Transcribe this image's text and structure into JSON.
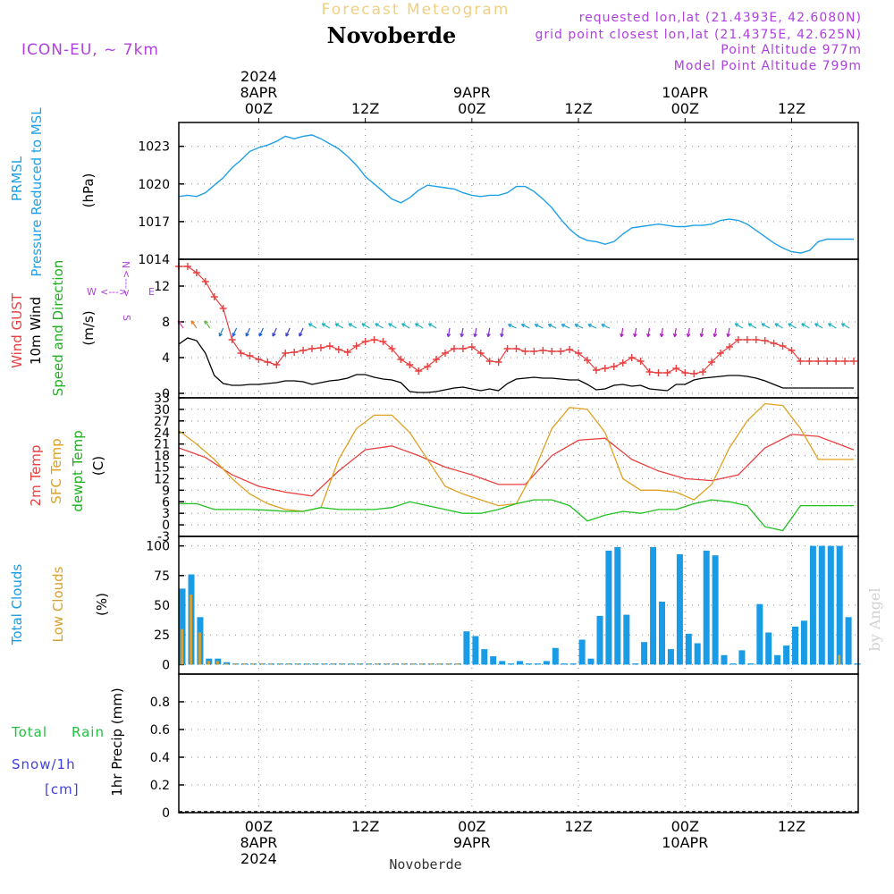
{
  "header": {
    "forecast_title": "Forecast Meteogram",
    "location": "Novoberde",
    "model": "ICON-EU, ~ 7km",
    "requested": "requested lon,lat (21.4393E, 42.6080N)",
    "gridpoint": "grid point closest lon,lat (21.4375E, 42.625N)",
    "point_altitude": "Point Altitude 977m",
    "model_altitude": "Model Point Altitude 799m",
    "watermark": "by Angel",
    "footer_location": "Novoberde"
  },
  "colors": {
    "pressure": "#1ea0e6",
    "gust": "#e84040",
    "wind": "#000000",
    "temp2m": "#e84040",
    "sfc": "#e0a020",
    "dewpt": "#20c020",
    "total_clouds": "#1a9be6",
    "low_clouds": "#d8a030",
    "purple": "#b040e0",
    "rain": "#20c040",
    "snow": "#4040e0"
  },
  "time_axis": {
    "top": [
      {
        "hours": 9,
        "lines": [
          "2024",
          "8APR",
          "00Z"
        ]
      },
      {
        "hours": 21,
        "lines": [
          "12Z"
        ]
      },
      {
        "hours": 33,
        "lines": [
          "9APR",
          "00Z"
        ]
      },
      {
        "hours": 45,
        "lines": [
          "12Z"
        ]
      },
      {
        "hours": 57,
        "lines": [
          "10APR",
          "00Z"
        ]
      },
      {
        "hours": 69,
        "lines": [
          "12Z"
        ]
      }
    ],
    "bottom": [
      {
        "hours": 9,
        "lines": [
          "00Z",
          "8APR",
          "2024"
        ]
      },
      {
        "hours": 21,
        "lines": [
          "12Z"
        ]
      },
      {
        "hours": 33,
        "lines": [
          "00Z",
          "9APR"
        ]
      },
      {
        "hours": 45,
        "lines": [
          "12Z"
        ]
      },
      {
        "hours": 57,
        "lines": [
          "00Z",
          "10APR"
        ]
      },
      {
        "hours": 69,
        "lines": [
          "12Z"
        ]
      }
    ],
    "xlim": [
      0,
      76.5
    ],
    "note_x": "hours since 15Z 7APR 2024"
  },
  "panel_labels": {
    "pressure": [
      "PRMSL",
      "Pressure Reduced to MSL"
    ],
    "pressure_unit": "(hPa)",
    "wind": [
      "Wind GUST",
      "10m Wind",
      "Speed and Direction"
    ],
    "wind_unit": "(m/s)",
    "wind_rose": {
      "n": "N",
      "s": "S",
      "w": "W",
      "e": "E",
      "arrow_ew": "<--->",
      "arrow_ns": "<--->"
    },
    "temp": [
      "2m Temp",
      "SFC Temp",
      "dewpt Temp"
    ],
    "temp_unit": "(C)",
    "clouds": [
      "Total Clouds",
      "Low Clouds"
    ],
    "clouds_unit": "(%)",
    "precip": [
      "Total",
      "Rain",
      "Snow/1h",
      "[cm]"
    ],
    "precip_unit": "1hr Precip (mm)"
  },
  "chart_data": [
    {
      "type": "line",
      "title": "PRMSL Pressure Reduced to MSL",
      "ylabel": "(hPa)",
      "ylim": [
        1014,
        1024.9
      ],
      "yticks": [
        1014,
        1017,
        1020,
        1023
      ],
      "grid": true,
      "series": [
        {
          "name": "PRMSL",
          "x": [
            0,
            1,
            2,
            3,
            4,
            5,
            6,
            7,
            8,
            9,
            10,
            11,
            12,
            13,
            14,
            15,
            16,
            17,
            18,
            19,
            20,
            21,
            22,
            23,
            24,
            25,
            26,
            27,
            28,
            29,
            30,
            31,
            32,
            33,
            34,
            35,
            36,
            37,
            38,
            39,
            40,
            41,
            42,
            43,
            44,
            45,
            46,
            47,
            48,
            49,
            50,
            51,
            52,
            53,
            54,
            55,
            56,
            57,
            58,
            59,
            60,
            61,
            62,
            63,
            64,
            65,
            66,
            67,
            68,
            69,
            70,
            71,
            72,
            73,
            74,
            75,
            76
          ],
          "values": [
            1019,
            1019.1,
            1019.0,
            1019.3,
            1019.9,
            1020.5,
            1021.3,
            1021.9,
            1022.6,
            1022.9,
            1023.1,
            1023.4,
            1023.8,
            1023.6,
            1023.8,
            1023.9,
            1023.6,
            1023.2,
            1022.8,
            1022.2,
            1021.5,
            1020.6,
            1020.0,
            1019.4,
            1018.8,
            1018.5,
            1018.9,
            1019.5,
            1019.9,
            1019.8,
            1019.7,
            1019.6,
            1019.3,
            1019.1,
            1019.0,
            1019.1,
            1019.1,
            1019.3,
            1019.8,
            1019.8,
            1019.4,
            1018.8,
            1018.1,
            1017.2,
            1016.4,
            1015.8,
            1015.5,
            1015.4,
            1015.2,
            1015.4,
            1016.0,
            1016.5,
            1016.6,
            1016.7,
            1016.8,
            1016.7,
            1016.6,
            1016.6,
            1016.7,
            1016.7,
            1016.8,
            1017.1,
            1017.2,
            1017.1,
            1016.8,
            1016.3,
            1015.8,
            1015.3,
            1014.9,
            1014.6,
            1014.5,
            1014.7,
            1015.4,
            1015.6,
            1015.6,
            1015.6,
            1015.6
          ]
        }
      ]
    },
    {
      "type": "line",
      "title": "Wind GUST / 10m Wind Speed and Direction",
      "ylabel": "(m/s)",
      "ylim": [
        -0.5,
        15
      ],
      "yticks": [
        0,
        4,
        8,
        12
      ],
      "grid": true,
      "series": [
        {
          "name": "Wind GUST",
          "marker": "+",
          "x": [
            0,
            1,
            2,
            3,
            4,
            5,
            6,
            7,
            8,
            9,
            10,
            11,
            12,
            13,
            14,
            15,
            16,
            17,
            18,
            19,
            20,
            21,
            22,
            23,
            24,
            25,
            26,
            27,
            28,
            29,
            30,
            31,
            32,
            33,
            34,
            35,
            36,
            37,
            38,
            39,
            40,
            41,
            42,
            43,
            44,
            45,
            46,
            47,
            48,
            49,
            50,
            51,
            52,
            53,
            54,
            55,
            56,
            57,
            58,
            59,
            60,
            61,
            62,
            63,
            64,
            65,
            66,
            67,
            68,
            69,
            70,
            71,
            72,
            73,
            74,
            75,
            76
          ],
          "values": [
            14.2,
            14.2,
            13.5,
            12.5,
            10.8,
            9.5,
            6,
            4.5,
            4.2,
            3.8,
            3.5,
            3.2,
            4.5,
            4.6,
            4.8,
            5,
            5.1,
            5.3,
            4.9,
            4.6,
            5.3,
            5.8,
            6,
            5.8,
            5,
            3.8,
            3.2,
            2.5,
            3,
            3.8,
            4.5,
            5,
            5,
            5.2,
            4.5,
            3.6,
            3.5,
            5.0,
            5.0,
            4.7,
            4.7,
            4.8,
            4.7,
            4.7,
            4.9,
            4.5,
            3.7,
            2.6,
            2.8,
            3.0,
            3.4,
            4.0,
            3.6,
            2.4,
            2.3,
            2.3,
            2.8,
            2.3,
            2.2,
            2.4,
            3.5,
            4.5,
            5.2,
            6,
            6,
            6,
            5.9,
            5.6,
            5.3,
            4.8,
            3.6,
            3.6,
            3.6,
            3.6,
            3.6,
            3.6,
            3.6
          ]
        },
        {
          "name": "10m Wind",
          "x": [
            0,
            1,
            2,
            3,
            4,
            5,
            6,
            7,
            8,
            9,
            10,
            11,
            12,
            13,
            14,
            15,
            16,
            17,
            18,
            19,
            20,
            21,
            22,
            23,
            24,
            25,
            26,
            27,
            28,
            29,
            30,
            31,
            32,
            33,
            34,
            35,
            36,
            37,
            38,
            39,
            40,
            41,
            42,
            43,
            44,
            45,
            46,
            47,
            48,
            49,
            50,
            51,
            52,
            53,
            54,
            55,
            56,
            57,
            58,
            59,
            60,
            61,
            62,
            63,
            64,
            65,
            66,
            67,
            68,
            69,
            70,
            71,
            72,
            73,
            74,
            75,
            76
          ],
          "values": [
            5.5,
            6.2,
            5.9,
            4.5,
            2.0,
            1.1,
            0.9,
            0.9,
            1.0,
            1.0,
            1.1,
            1.2,
            1.4,
            1.4,
            1.3,
            1.0,
            1.2,
            1.4,
            1.5,
            1.7,
            2.1,
            2.1,
            1.8,
            1.6,
            1.5,
            1.2,
            0.2,
            0.1,
            0.1,
            0.2,
            0.4,
            0.6,
            0.7,
            0.5,
            0.3,
            0.5,
            0.3,
            1.1,
            1.6,
            1.7,
            1.8,
            1.7,
            1.7,
            1.6,
            1.5,
            1.5,
            1.0,
            0.4,
            0.5,
            0.9,
            1.0,
            0.8,
            0.9,
            0.5,
            0.4,
            0.3,
            1.0,
            1.0,
            1.5,
            1.7,
            1.8,
            1.9,
            2.0,
            2.0,
            1.9,
            1.7,
            1.4,
            1.0,
            0.6,
            0.6,
            0.6,
            0.6,
            0.6,
            0.6,
            0.6,
            0.6,
            0.6
          ]
        }
      ]
    },
    {
      "type": "line",
      "title": "2m Temp / SFC Temp / dewpt Temp",
      "ylabel": "(C)",
      "ylim": [
        -3,
        33
      ],
      "yticks": [
        -3,
        0,
        3,
        6,
        9,
        12,
        15,
        18,
        21,
        24,
        27,
        30,
        33
      ],
      "grid": true,
      "series": [
        {
          "name": "2m Temp",
          "x": [
            0,
            3,
            6,
            9,
            12,
            15,
            18,
            21,
            24,
            27,
            30,
            33,
            36,
            39,
            42,
            45,
            48,
            51,
            54,
            57,
            60,
            63,
            66,
            69,
            72,
            76
          ],
          "values": [
            20,
            17.5,
            13,
            10,
            8.5,
            7.5,
            14,
            19.5,
            20.5,
            18,
            15,
            13,
            10.5,
            10.5,
            18,
            22,
            22.5,
            17,
            14,
            12,
            11.5,
            13,
            20,
            23.5,
            23,
            19.5
          ]
        },
        {
          "name": "SFC Temp",
          "x": [
            0,
            2,
            4,
            6,
            8,
            10,
            12,
            14,
            16,
            18,
            20,
            22,
            24,
            26,
            28,
            30,
            32,
            34,
            36,
            38,
            40,
            42,
            44,
            46,
            48,
            50,
            52,
            54,
            56,
            58,
            60,
            62,
            64,
            66,
            68,
            70,
            72,
            74,
            76
          ],
          "values": [
            24.5,
            21,
            17,
            12,
            8,
            5.5,
            4,
            3.5,
            4.5,
            17,
            25,
            28.5,
            28.5,
            24,
            17,
            10,
            8,
            6.5,
            5,
            5.5,
            14,
            25,
            30.5,
            30,
            24,
            12,
            9,
            9,
            8.5,
            6.5,
            10.5,
            20,
            27,
            31.5,
            31,
            25,
            17,
            17,
            17
          ]
        },
        {
          "name": "dewpt Temp",
          "x": [
            0,
            2,
            4,
            6,
            8,
            10,
            12,
            14,
            16,
            18,
            20,
            22,
            24,
            26,
            28,
            30,
            32,
            34,
            36,
            38,
            40,
            42,
            44,
            46,
            48,
            50,
            52,
            54,
            56,
            58,
            60,
            62,
            64,
            66,
            68,
            70,
            72,
            74,
            76
          ],
          "values": [
            5.5,
            5.5,
            4,
            4,
            4,
            3.8,
            3.5,
            3.5,
            4.5,
            4,
            4,
            4,
            4.5,
            6,
            5,
            4,
            3,
            3,
            4,
            5.5,
            6.5,
            6.5,
            5,
            1,
            2.5,
            3.5,
            3,
            4,
            4,
            5.5,
            6.5,
            6,
            5,
            -0.5,
            -1.5,
            5,
            5,
            5,
            5
          ]
        }
      ]
    },
    {
      "type": "bar",
      "title": "Total Clouds / Low Clouds",
      "ylabel": "(%)",
      "ylim": [
        -8,
        108
      ],
      "yticks": [
        0,
        25,
        50,
        75,
        100
      ],
      "grid": true,
      "categories": [
        0,
        1,
        2,
        3,
        4,
        5,
        6,
        7,
        8,
        9,
        10,
        11,
        12,
        13,
        14,
        15,
        16,
        17,
        18,
        19,
        20,
        21,
        22,
        23,
        24,
        25,
        26,
        27,
        28,
        29,
        30,
        31,
        32,
        33,
        34,
        35,
        36,
        37,
        38,
        39,
        40,
        41,
        42,
        43,
        44,
        45,
        46,
        47,
        48,
        49,
        50,
        51,
        52,
        53,
        54,
        55,
        56,
        57,
        58,
        59,
        60,
        61,
        62,
        63,
        64,
        65,
        66,
        67,
        68,
        69,
        70,
        71,
        72,
        73,
        74,
        75,
        76
      ],
      "series": [
        {
          "name": "Total Clouds",
          "values": [
            64,
            76,
            40,
            5,
            5,
            2,
            1,
            1,
            1,
            1,
            1,
            1,
            1,
            1,
            1,
            1,
            1,
            1,
            1,
            1,
            1,
            1,
            1,
            1,
            1,
            1,
            1,
            1,
            1,
            1,
            1,
            1,
            28,
            24,
            13,
            7,
            3,
            1,
            3,
            1,
            1,
            3,
            14,
            1,
            1,
            21,
            5,
            41,
            96,
            99,
            42,
            1,
            19,
            99,
            53,
            13,
            93,
            26,
            18,
            96,
            92,
            8,
            1,
            12,
            1,
            51,
            27,
            8,
            16,
            32,
            37,
            100,
            100,
            100,
            100,
            40,
            1
          ]
        },
        {
          "name": "Low Clouds",
          "values": [
            30,
            59,
            27,
            3,
            3,
            1,
            1,
            1,
            1,
            1,
            1,
            1,
            1,
            1,
            1,
            1,
            1,
            1,
            1,
            1,
            1,
            1,
            1,
            1,
            1,
            1,
            1,
            1,
            1,
            1,
            1,
            1,
            0,
            0,
            0,
            0,
            0,
            0,
            0,
            0,
            0,
            0,
            0,
            0,
            0,
            0,
            0,
            0,
            0,
            0,
            0,
            0,
            0,
            0,
            0,
            0,
            0,
            0,
            0,
            0,
            0,
            0,
            0,
            0,
            0,
            0,
            0,
            0,
            0,
            0,
            0,
            0,
            0,
            0,
            8,
            0,
            0
          ]
        }
      ]
    },
    {
      "type": "bar",
      "title": "1hr Precip (mm)",
      "ylabel": "1hr Precip (mm)",
      "ylim": [
        0,
        1
      ],
      "yticks": [
        0,
        0.2,
        0.4,
        0.6,
        0.8
      ],
      "grid": true,
      "series": [
        {
          "name": "Total Rain",
          "values": [
            0
          ]
        },
        {
          "name": "Snow/1h",
          "values": [
            0
          ]
        }
      ]
    }
  ]
}
